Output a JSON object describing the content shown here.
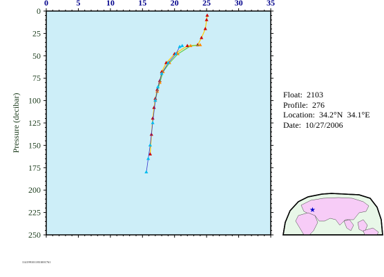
{
  "info": {
    "float_label": "Float:",
    "float_value": "2103",
    "profile_label": "Profile:",
    "profile_value": "276",
    "location_label": "Location:",
    "location_value": "34.2°N  34.1°E",
    "date_label": "Date:",
    "date_value": "10/27/2006"
  },
  "footer_text": "1141991011831001761",
  "colors": {
    "plot_bg": "#cdeef8",
    "axis": "#000000",
    "x_tick_text": "#00008b",
    "y_tick_text": "#1a3a1a",
    "marker_red": "#cc0000",
    "marker_orange": "#ff8800",
    "line_yellow": "#ffcc00",
    "line_green": "#66cc44",
    "line_blue": "#3333cc",
    "marker_cyan": "#00bbee",
    "map_land": "#f7ccf7",
    "map_ocean": "#e8f7e8",
    "map_marker": "#0000cc"
  },
  "chart_data": {
    "type": "line",
    "title": "",
    "xlabel": "",
    "ylabel": "Pressure (decibar)",
    "xlim": [
      0,
      35
    ],
    "ylim": [
      250,
      0
    ],
    "x_ticks": [
      0,
      5,
      10,
      15,
      20,
      25,
      30,
      35
    ],
    "x_tick_labels": [
      "0",
      "5",
      "10",
      "15",
      "20",
      "25",
      "30",
      "35"
    ],
    "y_ticks": [
      0,
      25,
      50,
      75,
      100,
      125,
      150,
      175,
      200,
      225,
      250
    ],
    "y_tick_labels": [
      "0",
      "25",
      "50",
      "75",
      "100",
      "125",
      "150",
      "175",
      "200",
      "225",
      "250"
    ],
    "grid": false,
    "series": [
      {
        "color": "#ffcc00",
        "marker": "triangle-red",
        "points": [
          [
            25.1,
            5
          ],
          [
            25.0,
            10
          ],
          [
            24.8,
            20
          ],
          [
            24.2,
            30
          ],
          [
            23.6,
            38
          ],
          [
            22.0,
            39
          ],
          [
            20.0,
            48
          ],
          [
            18.7,
            58
          ],
          [
            18.0,
            68
          ],
          [
            17.7,
            78
          ],
          [
            17.3,
            88
          ],
          [
            17.0,
            98
          ],
          [
            16.8,
            108
          ],
          [
            16.6,
            120
          ],
          [
            16.4,
            138
          ],
          [
            16.2,
            160
          ]
        ]
      },
      {
        "color": "#66cc44",
        "marker": "triangle-orange",
        "points": [
          [
            24.0,
            38
          ],
          [
            22.5,
            39
          ],
          [
            20.5,
            48
          ],
          [
            19.2,
            58
          ],
          [
            18.2,
            68
          ],
          [
            17.7,
            80
          ],
          [
            17.3,
            90
          ],
          [
            17.0,
            100
          ]
        ]
      },
      {
        "color": "#3333cc",
        "marker": "triangle-cyan",
        "points": [
          [
            21.2,
            39
          ],
          [
            20.8,
            40
          ],
          [
            20.2,
            48
          ],
          [
            19.0,
            58
          ],
          [
            18.0,
            70
          ],
          [
            17.4,
            85
          ],
          [
            17.0,
            100
          ],
          [
            16.6,
            125
          ],
          [
            16.2,
            150
          ],
          [
            15.9,
            165
          ],
          [
            15.6,
            180
          ]
        ]
      }
    ]
  }
}
